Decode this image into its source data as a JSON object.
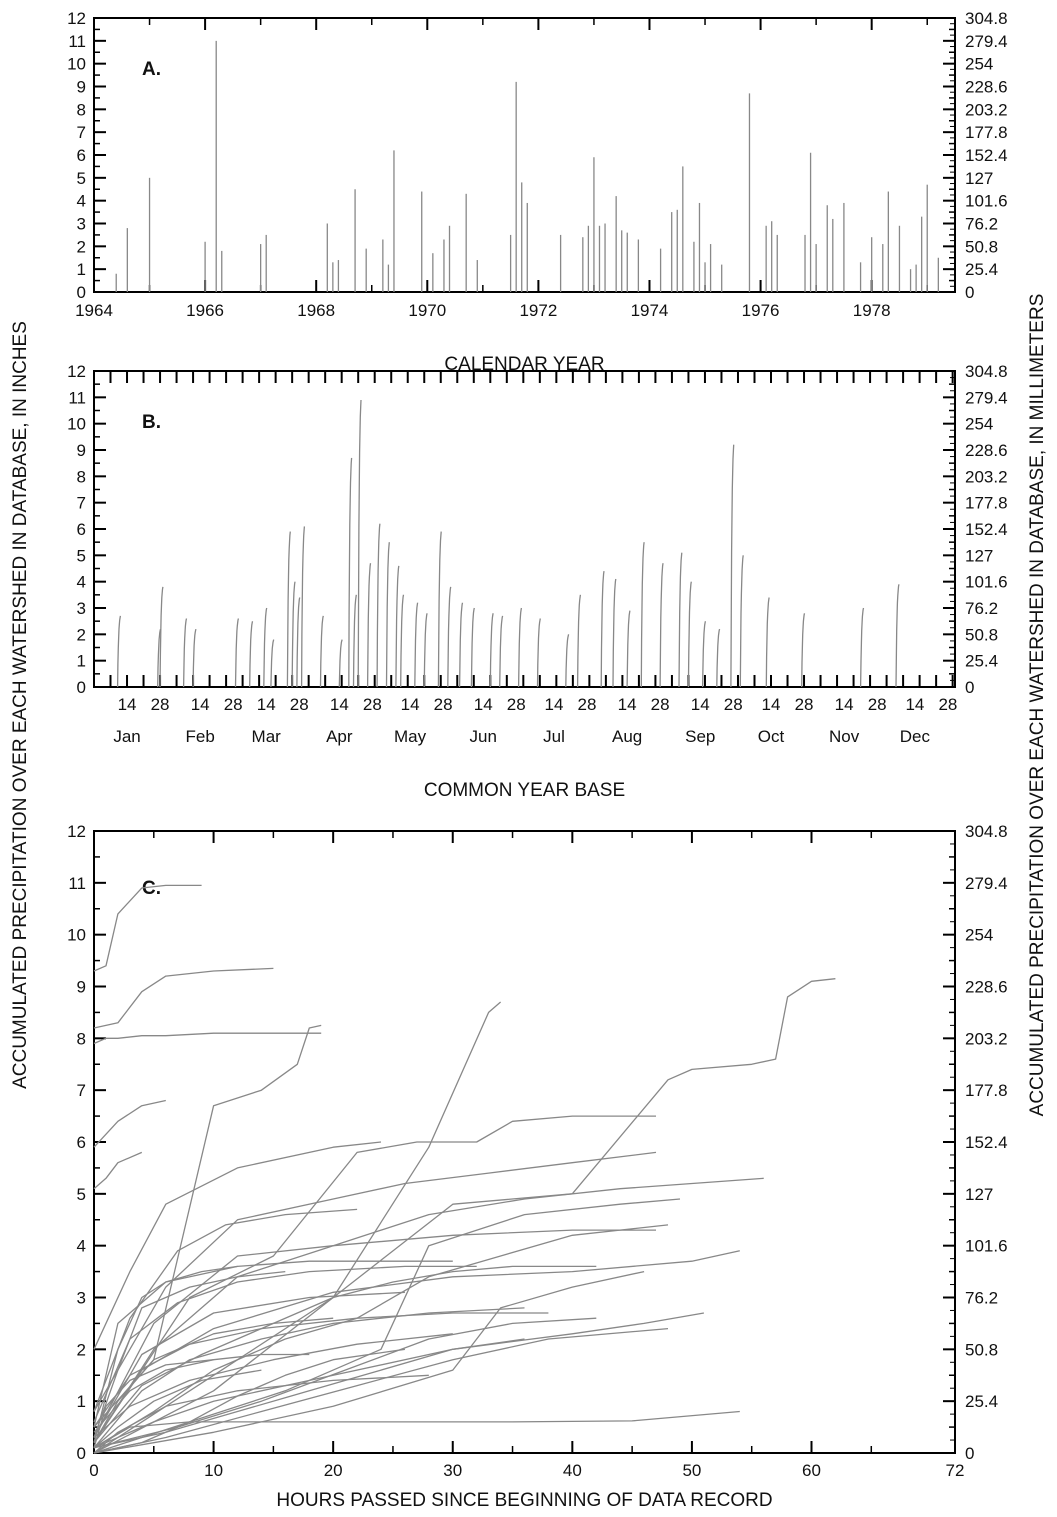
{
  "figure": {
    "ylabel_left": "ACCUMULATED PRECIPITATION OVER EACH WATERSHED IN DATABASE, IN INCHES",
    "ylabel_right": "ACCUMULATED PRECIPITATION OVER EACH WATERSHED IN DATABASE, IN MILLIMETERS",
    "right_axis_ticks": [
      "0",
      "25.4",
      "50.8",
      "76.2",
      "101.6",
      "127",
      "152.4",
      "177.8",
      "203.2",
      "228.6",
      "254",
      "279.4",
      "304.8"
    ],
    "line_color": "#888888"
  },
  "chart_data": [
    {
      "panel": "A.",
      "type": "bar",
      "xlabel": "CALENDAR YEAR",
      "xlim": [
        1964,
        1979.5
      ],
      "ylim": [
        0,
        12
      ],
      "x_ticks": [
        "1964",
        "1966",
        "1968",
        "1970",
        "1972",
        "1974",
        "1976",
        "1978"
      ],
      "y_ticks": [
        "0",
        "1",
        "2",
        "3",
        "4",
        "5",
        "6",
        "7",
        "8",
        "9",
        "10",
        "11",
        "12"
      ],
      "x": [
        1964.4,
        1964.6,
        1965.0,
        1966.0,
        1966.2,
        1966.3,
        1967.0,
        1967.1,
        1968.2,
        1968.3,
        1968.4,
        1968.7,
        1968.9,
        1969.2,
        1969.3,
        1969.4,
        1969.9,
        1970.1,
        1970.3,
        1970.4,
        1970.7,
        1970.9,
        1971.5,
        1971.6,
        1971.7,
        1971.8,
        1972.4,
        1972.8,
        1972.9,
        1973.0,
        1973.1,
        1973.2,
        1973.4,
        1973.5,
        1973.6,
        1973.8,
        1974.2,
        1974.4,
        1974.5,
        1974.6,
        1974.8,
        1974.9,
        1975.0,
        1975.1,
        1975.3,
        1975.8,
        1976.1,
        1976.2,
        1976.3,
        1976.8,
        1976.9,
        1977.0,
        1977.2,
        1977.3,
        1977.5,
        1977.8,
        1978.0,
        1978.2,
        1978.3,
        1978.5,
        1978.7,
        1978.8,
        1978.9,
        1979.0,
        1979.2
      ],
      "values": [
        0.8,
        2.8,
        5.0,
        2.2,
        11.0,
        1.8,
        2.1,
        2.5,
        3.0,
        1.3,
        1.4,
        4.5,
        1.9,
        2.3,
        1.2,
        6.2,
        4.4,
        1.7,
        2.3,
        2.9,
        4.3,
        1.4,
        2.5,
        9.2,
        4.8,
        3.9,
        2.5,
        2.4,
        2.9,
        5.9,
        2.9,
        3.0,
        4.2,
        2.7,
        2.6,
        2.3,
        1.9,
        3.5,
        3.6,
        5.5,
        2.2,
        3.9,
        1.3,
        2.1,
        1.2,
        8.7,
        2.9,
        3.1,
        2.5,
        2.5,
        6.1,
        2.1,
        3.8,
        3.2,
        3.9,
        1.3,
        2.4,
        2.1,
        4.4,
        2.9,
        1.0,
        1.2,
        3.3,
        4.7,
        1.5
      ]
    },
    {
      "panel": "B.",
      "type": "line",
      "xlabel": "COMMON YEAR BASE",
      "xlim": [
        0,
        365
      ],
      "ylim": [
        0,
        12
      ],
      "y_ticks": [
        "0",
        "1",
        "2",
        "3",
        "4",
        "5",
        "6",
        "7",
        "8",
        "9",
        "10",
        "11",
        "12"
      ],
      "month_labels": [
        "Jan",
        "Feb",
        "Mar",
        "Apr",
        "May",
        "Jun",
        "Jul",
        "Aug",
        "Sep",
        "Oct",
        "Nov",
        "Dec"
      ],
      "day_labels": [
        "14",
        "28"
      ],
      "events_day": [
        10,
        27,
        28,
        38,
        42,
        60,
        66,
        72,
        75,
        82,
        84,
        86,
        88,
        96,
        104,
        108,
        110,
        112,
        116,
        120,
        124,
        128,
        130,
        136,
        140,
        146,
        150,
        155,
        160,
        168,
        172,
        180,
        188,
        200,
        205,
        215,
        220,
        226,
        232,
        240,
        248,
        252,
        258,
        264,
        270,
        274,
        285,
        300,
        325,
        340
      ],
      "events_max": [
        2.7,
        2.2,
        3.8,
        2.6,
        2.2,
        2.6,
        2.5,
        3.0,
        1.8,
        5.9,
        4.0,
        3.4,
        6.1,
        2.7,
        1.8,
        8.7,
        3.5,
        10.9,
        4.7,
        6.2,
        5.5,
        4.6,
        3.5,
        3.2,
        2.8,
        5.9,
        3.8,
        3.2,
        3.0,
        2.8,
        2.7,
        3.0,
        2.6,
        2.0,
        3.5,
        4.4,
        4.1,
        2.9,
        5.5,
        4.7,
        5.1,
        4.0,
        2.5,
        2.2,
        9.2,
        5.0,
        3.4,
        2.8,
        3.0,
        3.9
      ]
    },
    {
      "panel": "C.",
      "type": "line",
      "xlabel": "HOURS PASSED SINCE BEGINNING OF DATA RECORD",
      "xlim": [
        0,
        72
      ],
      "ylim": [
        0,
        12
      ],
      "x_ticks": [
        "0",
        "10",
        "20",
        "30",
        "40",
        "50",
        "60",
        "72"
      ],
      "y_ticks": [
        "0",
        "1",
        "2",
        "3",
        "4",
        "5",
        "6",
        "7",
        "8",
        "9",
        "10",
        "11",
        "12"
      ],
      "series": [
        {
          "x": [
            0,
            1,
            2,
            4,
            6,
            9
          ],
          "y": [
            9.3,
            9.4,
            10.4,
            10.9,
            10.95,
            10.95
          ]
        },
        {
          "x": [
            0,
            2,
            4,
            6,
            10,
            15
          ],
          "y": [
            8.2,
            8.3,
            8.9,
            9.2,
            9.3,
            9.35
          ]
        },
        {
          "x": [
            0,
            1,
            2,
            4,
            6,
            10,
            19
          ],
          "y": [
            7.9,
            8.0,
            8.0,
            8.05,
            8.05,
            8.1,
            8.1
          ]
        },
        {
          "x": [
            0,
            5,
            10,
            14,
            17,
            18,
            19
          ],
          "y": [
            0.5,
            1.8,
            6.7,
            7.0,
            7.5,
            8.2,
            8.25
          ]
        },
        {
          "x": [
            0,
            8,
            15,
            22,
            27,
            32,
            35,
            40,
            47
          ],
          "y": [
            0.2,
            3.0,
            3.8,
            5.8,
            6.0,
            6.0,
            6.4,
            6.5,
            6.5
          ]
        },
        {
          "x": [
            0,
            10,
            20,
            28,
            33,
            34
          ],
          "y": [
            0,
            1.2,
            3.0,
            5.9,
            8.5,
            8.7
          ]
        },
        {
          "x": [
            0,
            10,
            20,
            30,
            40,
            48,
            50,
            55,
            57,
            58,
            60,
            62
          ],
          "y": [
            0,
            1.5,
            3.0,
            4.8,
            5.0,
            7.2,
            7.4,
            7.5,
            7.6,
            8.8,
            9.1,
            9.15
          ]
        },
        {
          "x": [
            0,
            2,
            4,
            6
          ],
          "y": [
            5.9,
            6.4,
            6.7,
            6.8
          ]
        },
        {
          "x": [
            0,
            5,
            12,
            20,
            30,
            40,
            47
          ],
          "y": [
            0.3,
            2.5,
            3.8,
            4.0,
            4.2,
            4.3,
            4.3
          ]
        },
        {
          "x": [
            0,
            6,
            12,
            20,
            26,
            33,
            40,
            47
          ],
          "y": [
            0.8,
            3.2,
            4.5,
            4.9,
            5.2,
            5.4,
            5.6,
            5.8
          ]
        },
        {
          "x": [
            0,
            3,
            8,
            15,
            25,
            35,
            45,
            54
          ],
          "y": [
            0.1,
            0.5,
            0.6,
            0.6,
            0.6,
            0.6,
            0.62,
            0.8
          ]
        },
        {
          "x": [
            0,
            4,
            10,
            20,
            30,
            40,
            50,
            54
          ],
          "y": [
            0.2,
            1.6,
            2.4,
            3.1,
            3.4,
            3.5,
            3.7,
            3.9
          ]
        },
        {
          "x": [
            0,
            5,
            10,
            20,
            30,
            40,
            46,
            51
          ],
          "y": [
            0.1,
            0.6,
            1.0,
            1.5,
            2.0,
            2.3,
            2.5,
            2.7
          ]
        },
        {
          "x": [
            0,
            3,
            6,
            12,
            20,
            24
          ],
          "y": [
            2.0,
            3.5,
            4.8,
            5.5,
            5.9,
            6.0
          ]
        },
        {
          "x": [
            0,
            2,
            6,
            12,
            18,
            24,
            30
          ],
          "y": [
            0.5,
            2.5,
            3.3,
            3.6,
            3.7,
            3.7,
            3.7
          ]
        },
        {
          "x": [
            0,
            4,
            8,
            14,
            20,
            28,
            36
          ],
          "y": [
            0.1,
            1.2,
            1.8,
            2.2,
            2.5,
            2.7,
            2.8
          ]
        },
        {
          "x": [
            0,
            3,
            8,
            15,
            22,
            30
          ],
          "y": [
            0.3,
            0.9,
            1.4,
            1.8,
            2.1,
            2.3
          ]
        },
        {
          "x": [
            0,
            2,
            5,
            10,
            15,
            20
          ],
          "y": [
            0.2,
            1.0,
            1.8,
            2.3,
            2.5,
            2.6
          ]
        },
        {
          "x": [
            0,
            6,
            12,
            18,
            24,
            30,
            36
          ],
          "y": [
            0.1,
            0.4,
            0.8,
            1.2,
            1.6,
            2.0,
            2.2
          ]
        },
        {
          "x": [
            0,
            2,
            4,
            8,
            12,
            16
          ],
          "y": [
            0.3,
            1.6,
            2.8,
            3.2,
            3.4,
            3.5
          ]
        },
        {
          "x": [
            0,
            5,
            10,
            16,
            22,
            28,
            34,
            40,
            48
          ],
          "y": [
            0.1,
            0.8,
            1.6,
            2.2,
            2.6,
            3.4,
            3.8,
            4.2,
            4.4
          ]
        },
        {
          "x": [
            0,
            4,
            9,
            15,
            20,
            25,
            30,
            35,
            42
          ],
          "y": [
            0.2,
            1.3,
            1.9,
            2.5,
            3.0,
            3.3,
            3.5,
            3.6,
            3.6
          ]
        },
        {
          "x": [
            0,
            3,
            6,
            10,
            14,
            18
          ],
          "y": [
            0.4,
            1.2,
            1.6,
            1.8,
            1.9,
            1.9
          ]
        },
        {
          "x": [
            0,
            1,
            2,
            4
          ],
          "y": [
            5.1,
            5.3,
            5.6,
            5.8
          ]
        },
        {
          "x": [
            0,
            8,
            16,
            24,
            28,
            36,
            44,
            49
          ],
          "y": [
            0.0,
            0.6,
            1.2,
            2.0,
            4.0,
            4.6,
            4.8,
            4.9
          ]
        },
        {
          "x": [
            0,
            10,
            20,
            30,
            34,
            40,
            46
          ],
          "y": [
            0.0,
            0.4,
            0.9,
            1.6,
            2.8,
            3.2,
            3.5
          ]
        },
        {
          "x": [
            0,
            3,
            7,
            12,
            18,
            26,
            32
          ],
          "y": [
            0.6,
            2.2,
            2.9,
            3.3,
            3.5,
            3.6,
            3.6
          ]
        },
        {
          "x": [
            0,
            2,
            5,
            9,
            14
          ],
          "y": [
            0.1,
            0.5,
            1.0,
            1.4,
            1.6
          ]
        },
        {
          "x": [
            0,
            6,
            14,
            22,
            30,
            38,
            48
          ],
          "y": [
            0.0,
            0.3,
            0.8,
            1.3,
            1.8,
            2.2,
            2.4
          ]
        },
        {
          "x": [
            0,
            4,
            10,
            18,
            26
          ],
          "y": [
            0.3,
            1.9,
            2.7,
            3.0,
            3.1
          ]
        },
        {
          "x": [
            0,
            1,
            3,
            6,
            10
          ],
          "y": [
            0.1,
            0.9,
            1.4,
            1.7,
            1.8
          ]
        },
        {
          "x": [
            0,
            5,
            12,
            20,
            28,
            36,
            44,
            56
          ],
          "y": [
            0.2,
            2.0,
            3.4,
            4.0,
            4.6,
            4.9,
            5.1,
            5.3
          ]
        },
        {
          "x": [
            0,
            3,
            7,
            11,
            16,
            22
          ],
          "y": [
            0.8,
            2.6,
            3.9,
            4.4,
            4.6,
            4.7
          ]
        },
        {
          "x": [
            0,
            2,
            6,
            12,
            20,
            28
          ],
          "y": [
            0.0,
            0.4,
            0.9,
            1.2,
            1.4,
            1.5
          ]
        },
        {
          "x": [
            0,
            4,
            8,
            12,
            16,
            20,
            26
          ],
          "y": [
            0.0,
            0.2,
            0.6,
            1.1,
            1.5,
            1.8,
            2.0
          ]
        },
        {
          "x": [
            0,
            3,
            8,
            14,
            22,
            30,
            38
          ],
          "y": [
            0.5,
            1.5,
            2.1,
            2.4,
            2.6,
            2.7,
            2.7
          ]
        },
        {
          "x": [
            0,
            2,
            4,
            6,
            9,
            12
          ],
          "y": [
            0.2,
            2.0,
            3.0,
            3.3,
            3.5,
            3.6
          ]
        },
        {
          "x": [
            0,
            7,
            14,
            21,
            28,
            35,
            42
          ],
          "y": [
            0.1,
            0.5,
            1.0,
            1.6,
            2.2,
            2.5,
            2.6
          ]
        }
      ]
    }
  ]
}
